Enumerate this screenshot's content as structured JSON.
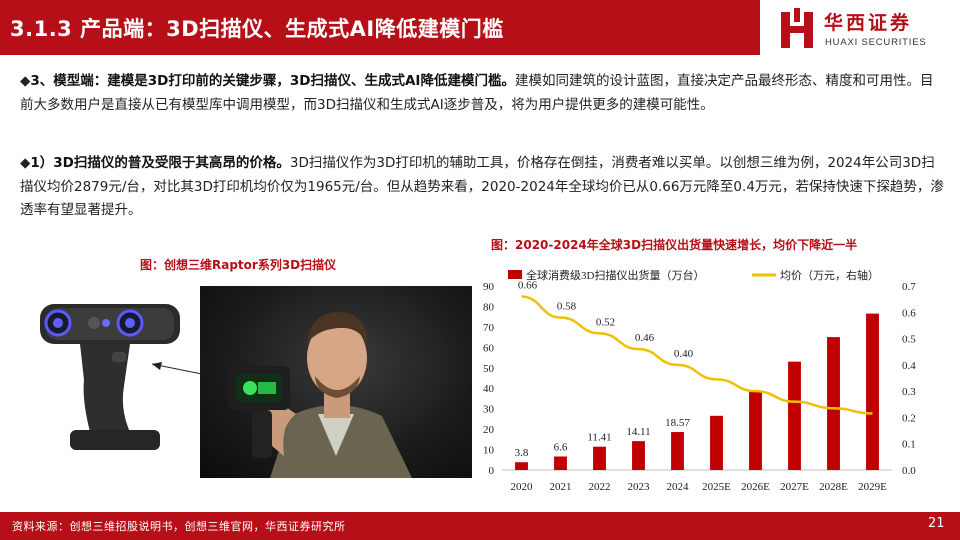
{
  "header": {
    "title": "3.1.3 产品端：3D扫描仪、生成式AI降低建模门槛"
  },
  "logo": {
    "name_cn": "华西证券",
    "name_en": "HUAXI SECURITIES",
    "brand_color": "#b70f17"
  },
  "paragraphs": [
    {
      "bullet": "◆",
      "bold": "3、模型端：建模是3D打印前的关键步骤，3D扫描仪、生成式AI降低建模门槛。",
      "text": "建模如同建筑的设计蓝图，直接决定产品最终形态、精度和可用性。目前大多数用户是直接从已有模型库中调用模型，而3D扫描仪和生成式AI逐步普及，将为用户提供更多的建模可能性。"
    },
    {
      "bullet": "◆",
      "bold": "1）3D扫描仪的普及受限于其高昂的价格。",
      "text": "3D扫描仪作为3D打印机的辅助工具，价格存在倒挂，消费者难以买单。以创想三维为例，2024年公司3D扫描仪均价2879元/台，对比其3D打印机均价仅为1965元/台。但从趋势来看，2020-2024年全球均价已从0.66万元降至0.4万元，若保持快速下探趋势，渗透率有望显著提升。"
    }
  ],
  "figure_left": {
    "caption": "图：创想三维Raptor系列3D扫描仪"
  },
  "chart_data": {
    "type": "bar",
    "title": "图：2020-2024年全球3D扫描仪出货量快速增长，均价下降近一半",
    "categories": [
      "2020",
      "2021",
      "2022",
      "2023",
      "2024",
      "2025E",
      "2026E",
      "2027E",
      "2028E",
      "2029E"
    ],
    "series": [
      {
        "name": "全球消费级3D扫描仪出货量（万台）",
        "type": "bar",
        "axis": "left",
        "values": [
          3.8,
          6.6,
          11.41,
          14.11,
          18.57,
          26.5,
          38.5,
          53,
          65,
          76.5
        ],
        "labels": [
          "3.8",
          "6.6",
          "11.41",
          "14.11",
          "18.57",
          "",
          "",
          "",
          "",
          ""
        ],
        "color": "#c00000"
      },
      {
        "name": "均价（万元，右轴）",
        "type": "line",
        "axis": "right",
        "values": [
          0.66,
          0.58,
          0.52,
          0.46,
          0.4,
          0.345,
          0.3,
          0.26,
          0.235,
          0.215
        ],
        "labels": [
          "0.66",
          "0.58",
          "0.52",
          "0.46",
          "0.40",
          "",
          "",
          "",
          "",
          ""
        ],
        "color": "#f0c000"
      }
    ],
    "ylim": [
      0,
      90
    ],
    "yticks": [
      0,
      10,
      20,
      30,
      40,
      50,
      60,
      70,
      80,
      90
    ],
    "y2lim": [
      0,
      0.7
    ],
    "y2ticks": [
      "0.0",
      "0.1",
      "0.2",
      "0.3",
      "0.4",
      "0.5",
      "0.6",
      "0.7"
    ],
    "legend": "top",
    "grid": false
  },
  "footer": {
    "source": "资料来源：创想三维招股说明书，创想三维官网，华西证券研究所",
    "page": "21"
  }
}
